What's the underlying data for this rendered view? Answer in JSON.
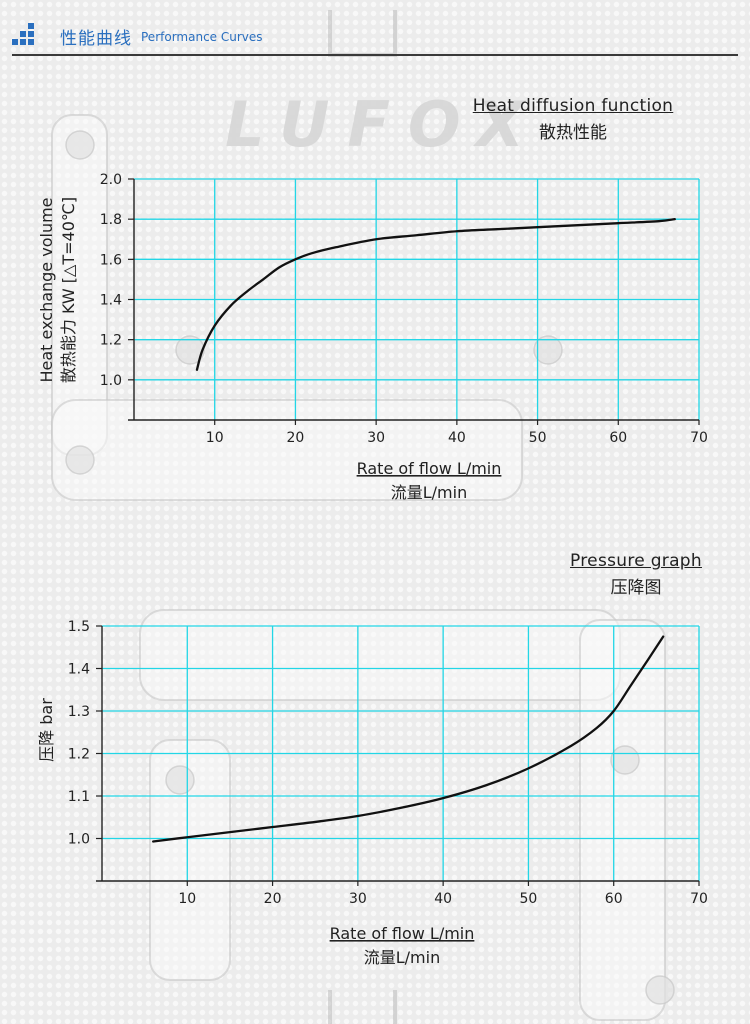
{
  "header": {
    "title_cn": "性能曲线",
    "title_en": "Performance Curves"
  },
  "watermark": "LUFOX",
  "accent_color": "#2a6fbf",
  "grid_color": "#22d6e6",
  "chart_data": [
    {
      "type": "line",
      "title": "Heat diffusion function",
      "subtitle": "散热性能",
      "xlabel": "Rate of flow L/min",
      "xlabel_cn": "流量L/min",
      "ylabel": "Heat exchange volume",
      "ylabel_cn": "散热能力 KW [△T=40℃]",
      "xlim": [
        0,
        70
      ],
      "ylim": [
        0.8,
        2.0
      ],
      "xticks": [
        10,
        20,
        30,
        40,
        50,
        60,
        70
      ],
      "yticks": [
        1.0,
        1.2,
        1.4,
        1.6,
        1.8,
        2.0
      ],
      "grid": true,
      "series": [
        {
          "x": [
            7.8,
            8.5,
            10,
            12,
            14,
            16,
            18,
            20,
            22,
            25,
            30,
            35,
            40,
            45,
            50,
            55,
            60,
            65,
            67
          ],
          "y": [
            1.05,
            1.15,
            1.27,
            1.37,
            1.44,
            1.5,
            1.56,
            1.6,
            1.63,
            1.66,
            1.7,
            1.72,
            1.74,
            1.75,
            1.76,
            1.77,
            1.78,
            1.79,
            1.8
          ]
        }
      ]
    },
    {
      "type": "line",
      "title": "Pressure graph",
      "subtitle": "压降图",
      "xlabel": "Rate of flow L/min",
      "xlabel_cn": "流量L/min",
      "ylabel": "压降 bar",
      "xlim": [
        0,
        70
      ],
      "ylim": [
        0.9,
        1.5
      ],
      "xticks": [
        10,
        20,
        30,
        40,
        50,
        60,
        70
      ],
      "yticks": [
        1.0,
        1.1,
        1.2,
        1.3,
        1.4,
        1.5
      ],
      "grid": true,
      "series": [
        {
          "x": [
            6,
            10,
            15,
            20,
            25,
            30,
            35,
            40,
            45,
            50,
            55,
            58,
            60,
            62,
            64,
            65.8
          ],
          "y": [
            0.993,
            1.003,
            1.015,
            1.027,
            1.039,
            1.053,
            1.072,
            1.095,
            1.125,
            1.165,
            1.218,
            1.26,
            1.3,
            1.36,
            1.42,
            1.475
          ]
        }
      ]
    }
  ]
}
